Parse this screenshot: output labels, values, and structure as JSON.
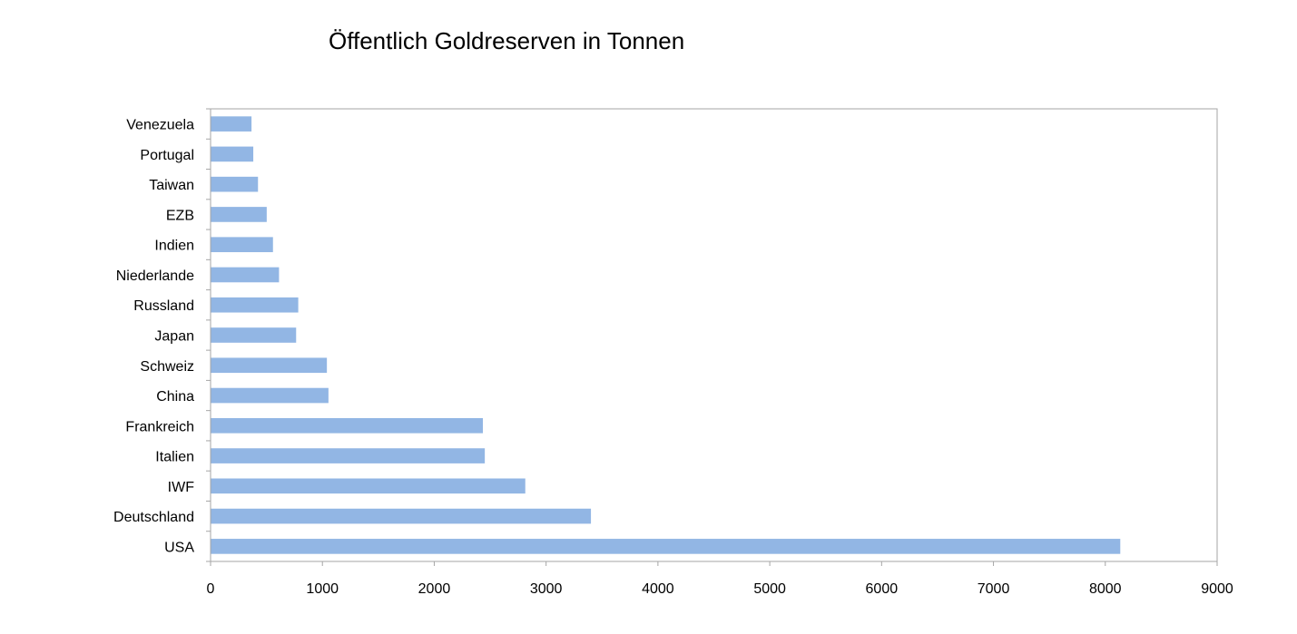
{
  "chart_data": {
    "type": "bar",
    "orientation": "horizontal",
    "title": "Öffentlich Goldreserven in Tonnen",
    "xlabel": "",
    "ylabel": "",
    "categories": [
      "USA",
      "Deutschland",
      "IWF",
      "Italien",
      "Frankreich",
      "China",
      "Schweiz",
      "Japan",
      "Russland",
      "Niederlande",
      "Indien",
      "EZB",
      "Taiwan",
      "Portugal",
      "Venezuela"
    ],
    "values": [
      8134,
      3401,
      2814,
      2452,
      2435,
      1054,
      1040,
      765,
      784,
      612,
      558,
      502,
      424,
      382,
      366
    ],
    "xlim": [
      0,
      9000
    ],
    "xticks": [
      0,
      1000,
      2000,
      3000,
      4000,
      5000,
      6000,
      7000,
      8000,
      9000
    ],
    "grid": false,
    "legend": "none",
    "bar_color": "#92b6e4",
    "axis_color": "#a6a6a6"
  }
}
